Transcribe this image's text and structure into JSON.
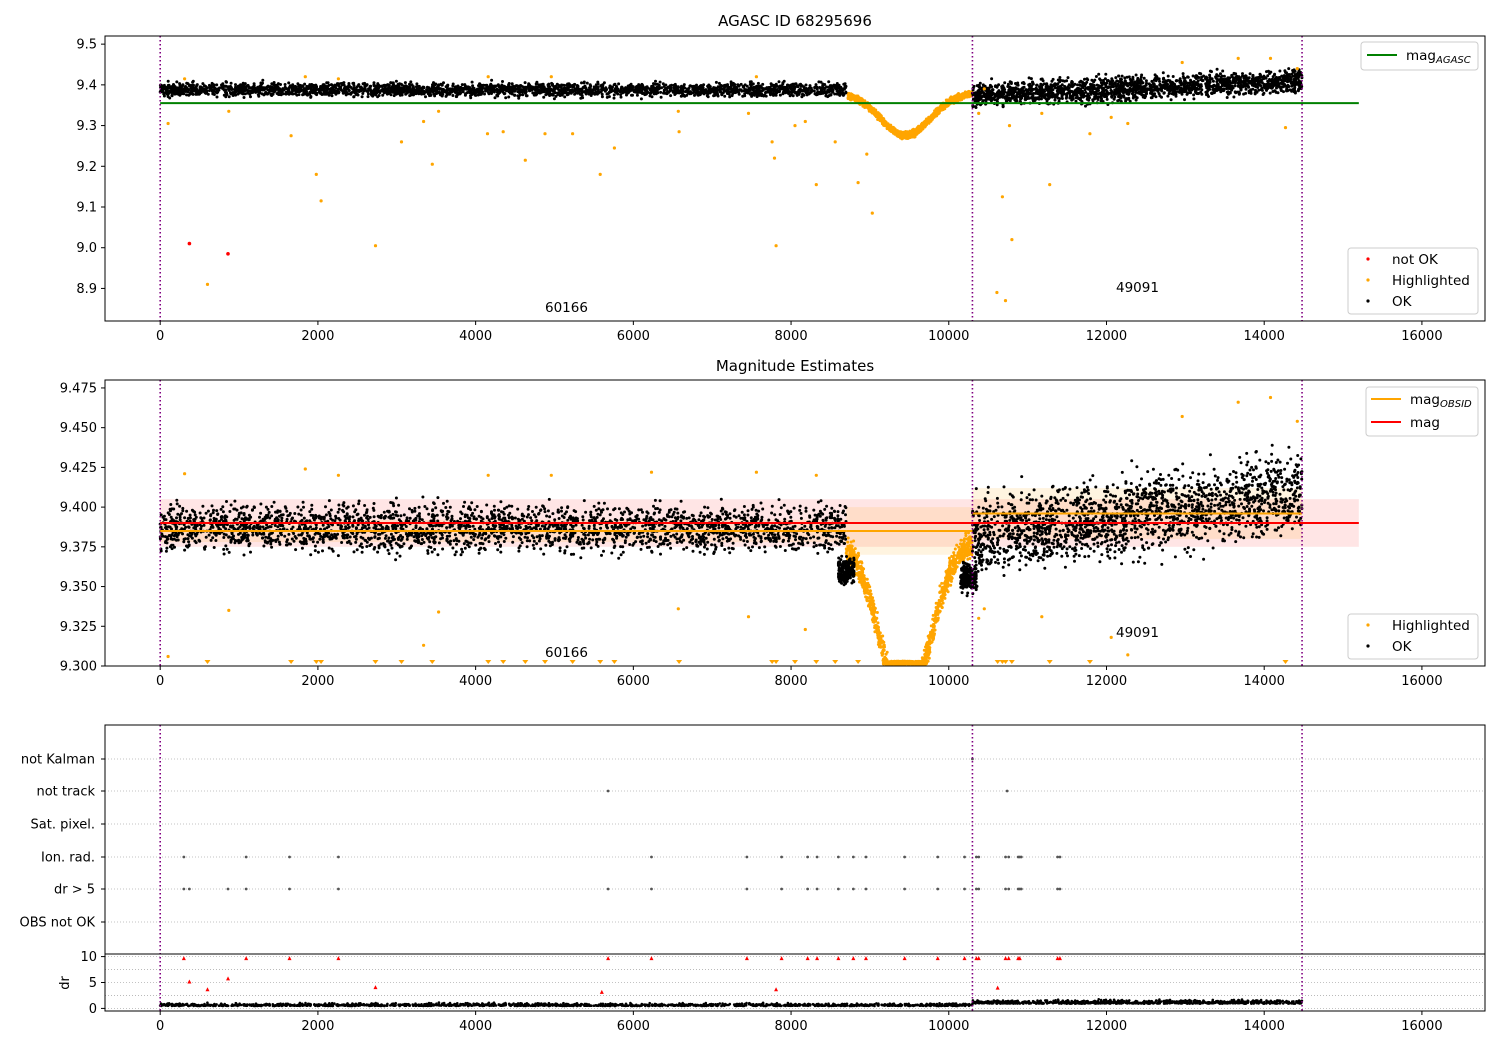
{
  "chart_data": [
    {
      "type": "scatter",
      "panel": "top",
      "title": "AGASC ID 68295696",
      "xlim": [
        -700,
        16800
      ],
      "ylim": [
        8.82,
        9.52
      ],
      "x_ticks": [
        0,
        2000,
        4000,
        6000,
        8000,
        10000,
        12000,
        14000,
        16000
      ],
      "x_tick_labels": [
        "0",
        "2000",
        "4000",
        "6000",
        "8000",
        "10000",
        "12000",
        "14000",
        "16000"
      ],
      "y_ticks": [
        8.9,
        9.0,
        9.1,
        9.2,
        9.3,
        9.4,
        9.5
      ],
      "y_tick_labels": [
        "8.9",
        "9.0",
        "9.1",
        "9.2",
        "9.3",
        "9.4",
        "9.5"
      ],
      "obsid_boundaries": [
        0,
        10300,
        14480
      ],
      "obsid_labels": [
        {
          "text": "60166",
          "x": 4880,
          "y": 8.84
        },
        {
          "text": "49091",
          "x": 12100,
          "y": 8.89
        }
      ],
      "mag_agasc": {
        "value": 9.355,
        "x_range": [
          0,
          15200
        ],
        "color": "#008000"
      },
      "legend_upper": {
        "location": "upper right",
        "entries": [
          {
            "label": "mag",
            "subscript": "AGASC",
            "style": "line",
            "color": "#008000"
          }
        ]
      },
      "legend_lower": {
        "location": "lower right",
        "entries": [
          {
            "label": "not OK",
            "style": "point",
            "color": "#ff0000"
          },
          {
            "label": "Highlighted",
            "style": "point",
            "color": "#ffa500"
          },
          {
            "label": "OK",
            "style": "point",
            "color": "#000000"
          }
        ]
      },
      "not_ok_points": [
        {
          "x": 370,
          "y": 9.01
        },
        {
          "x": 860,
          "y": 8.985
        }
      ],
      "highlighted_outliers": [
        {
          "x": 100,
          "y": 9.305
        },
        {
          "x": 310,
          "y": 9.415
        },
        {
          "x": 600,
          "y": 8.91
        },
        {
          "x": 870,
          "y": 9.335
        },
        {
          "x": 1660,
          "y": 9.275
        },
        {
          "x": 1840,
          "y": 9.42
        },
        {
          "x": 1980,
          "y": 9.18
        },
        {
          "x": 2040,
          "y": 9.115
        },
        {
          "x": 2260,
          "y": 9.415
        },
        {
          "x": 2730,
          "y": 9.005
        },
        {
          "x": 3060,
          "y": 9.26
        },
        {
          "x": 3340,
          "y": 9.31
        },
        {
          "x": 3450,
          "y": 9.205
        },
        {
          "x": 3530,
          "y": 9.335
        },
        {
          "x": 4150,
          "y": 9.28
        },
        {
          "x": 4160,
          "y": 9.42
        },
        {
          "x": 4350,
          "y": 9.285
        },
        {
          "x": 4630,
          "y": 9.215
        },
        {
          "x": 4880,
          "y": 9.28
        },
        {
          "x": 4960,
          "y": 9.42
        },
        {
          "x": 5230,
          "y": 9.28
        },
        {
          "x": 5580,
          "y": 9.18
        },
        {
          "x": 5760,
          "y": 9.245
        },
        {
          "x": 6580,
          "y": 9.285
        },
        {
          "x": 6570,
          "y": 9.335
        },
        {
          "x": 7460,
          "y": 9.33
        },
        {
          "x": 7560,
          "y": 9.42
        },
        {
          "x": 7760,
          "y": 9.26
        },
        {
          "x": 7790,
          "y": 9.22
        },
        {
          "x": 7810,
          "y": 9.005
        },
        {
          "x": 8050,
          "y": 9.3
        },
        {
          "x": 8180,
          "y": 9.31
        },
        {
          "x": 8320,
          "y": 9.155
        },
        {
          "x": 8560,
          "y": 9.26
        },
        {
          "x": 8850,
          "y": 9.16
        },
        {
          "x": 8960,
          "y": 9.23
        },
        {
          "x": 9030,
          "y": 9.085
        },
        {
          "x": 10380,
          "y": 9.33
        },
        {
          "x": 10450,
          "y": 9.39
        },
        {
          "x": 10610,
          "y": 8.89
        },
        {
          "x": 10680,
          "y": 9.125
        },
        {
          "x": 10720,
          "y": 8.87
        },
        {
          "x": 10800,
          "y": 9.02
        },
        {
          "x": 10770,
          "y": 9.3
        },
        {
          "x": 11180,
          "y": 9.33
        },
        {
          "x": 11280,
          "y": 9.155
        },
        {
          "x": 11790,
          "y": 9.28
        },
        {
          "x": 12060,
          "y": 9.32
        },
        {
          "x": 12270,
          "y": 9.305
        },
        {
          "x": 12960,
          "y": 9.455
        },
        {
          "x": 13670,
          "y": 9.465
        },
        {
          "x": 14080,
          "y": 9.465
        },
        {
          "x": 14270,
          "y": 9.295
        },
        {
          "x": 14420,
          "y": 9.44
        }
      ],
      "dip_highlighted": {
        "x_range": [
          8720,
          10300
        ],
        "center": 9450,
        "baseline": 9.38,
        "depth": 0.105
      },
      "ok_band_segments": [
        {
          "x_range": [
            0,
            8700
          ],
          "level": 9.388,
          "spread": 0.02
        },
        {
          "x_range": [
            10300,
            14480
          ],
          "level_start": 9.375,
          "level_end": 9.41,
          "spread": 0.035
        }
      ]
    },
    {
      "type": "scatter",
      "panel": "middle",
      "title": "Magnitude Estimates",
      "xlim": [
        -700,
        16800
      ],
      "ylim": [
        9.3,
        9.48
      ],
      "x_ticks": [
        0,
        2000,
        4000,
        6000,
        8000,
        10000,
        12000,
        14000,
        16000
      ],
      "x_tick_labels": [
        "0",
        "2000",
        "4000",
        "6000",
        "8000",
        "10000",
        "12000",
        "14000",
        "16000"
      ],
      "y_ticks": [
        9.3,
        9.325,
        9.35,
        9.375,
        9.4,
        9.425,
        9.45,
        9.475
      ],
      "y_tick_labels": [
        "9.300",
        "9.325",
        "9.350",
        "9.375",
        "9.400",
        "9.425",
        "9.450",
        "9.475"
      ],
      "obsid_boundaries": [
        0,
        10300,
        14480
      ],
      "obsid_labels": [
        {
          "text": "60166",
          "x": 4880,
          "y": 9.305
        },
        {
          "text": "49091",
          "x": 12100,
          "y": 9.32
        }
      ],
      "mag": {
        "value": 9.39,
        "band": [
          9.375,
          9.405
        ],
        "x_range": [
          0,
          15200
        ],
        "color": "#ff0000"
      },
      "mag_obsid": [
        {
          "x_range": [
            0,
            8700
          ],
          "value": 9.385,
          "band": [
            9.378,
            9.392
          ]
        },
        {
          "x_range": [
            8700,
            10300
          ],
          "value": 9.385,
          "band": [
            9.37,
            9.4
          ]
        },
        {
          "x_range": [
            10300,
            14480
          ],
          "value": 9.396,
          "band": [
            9.38,
            9.412
          ]
        }
      ],
      "mag_obsid_color": "#ffa500",
      "legend_upper": {
        "location": "upper right",
        "entries": [
          {
            "label": "mag",
            "subscript": "OBSID",
            "style": "line",
            "color": "#ffa500"
          },
          {
            "label": "mag",
            "style": "line",
            "color": "#ff0000"
          }
        ]
      },
      "legend_lower": {
        "location": "lower right",
        "entries": [
          {
            "label": "Highlighted",
            "style": "point",
            "color": "#ffa500"
          },
          {
            "label": "OK",
            "style": "point",
            "color": "#000000"
          }
        ]
      },
      "below_range_markers_x": [
        600,
        1660,
        1980,
        2040,
        2730,
        3060,
        3450,
        4160,
        4350,
        4630,
        4880,
        5230,
        5580,
        5760,
        6580,
        7760,
        7810,
        8050,
        8320,
        8560,
        8850,
        10620,
        10680,
        10720,
        10800,
        11280,
        11790,
        14270
      ],
      "highlighted_outliers": [
        {
          "x": 100,
          "y": 9.306
        },
        {
          "x": 310,
          "y": 9.421
        },
        {
          "x": 870,
          "y": 9.335
        },
        {
          "x": 1840,
          "y": 9.424
        },
        {
          "x": 2260,
          "y": 9.42
        },
        {
          "x": 3340,
          "y": 9.313
        },
        {
          "x": 3530,
          "y": 9.334
        },
        {
          "x": 4160,
          "y": 9.42
        },
        {
          "x": 4960,
          "y": 9.42
        },
        {
          "x": 6230,
          "y": 9.422
        },
        {
          "x": 6570,
          "y": 9.336
        },
        {
          "x": 7460,
          "y": 9.331
        },
        {
          "x": 7560,
          "y": 9.422
        },
        {
          "x": 8180,
          "y": 9.323
        },
        {
          "x": 8320,
          "y": 9.42
        },
        {
          "x": 10380,
          "y": 9.33
        },
        {
          "x": 10450,
          "y": 9.336
        },
        {
          "x": 11180,
          "y": 9.331
        },
        {
          "x": 12060,
          "y": 9.318
        },
        {
          "x": 12270,
          "y": 9.307
        },
        {
          "x": 12960,
          "y": 9.457
        },
        {
          "x": 13670,
          "y": 9.466
        },
        {
          "x": 14080,
          "y": 9.469
        },
        {
          "x": 14420,
          "y": 9.454
        }
      ],
      "ok_band_segments": [
        {
          "x_range": [
            0,
            8700
          ],
          "level": 9.387,
          "spread": 0.018
        },
        {
          "x_range": [
            10300,
            14480
          ],
          "level_start": 9.38,
          "level_end": 9.41,
          "spread": 0.03
        }
      ]
    },
    {
      "type": "scatter",
      "panel": "flags",
      "xlim": [
        -700,
        16800
      ],
      "categories": [
        "not Kalman",
        "not track",
        "Sat. pixel.",
        "Ion. rad.",
        "dr > 5",
        "OBS not OK"
      ],
      "obsid_boundaries": [
        0,
        10300,
        14480
      ],
      "flag_points": {
        "not Kalman": [
          10300
        ],
        "not track": [
          5680,
          10740
        ],
        "Sat. pixel.": [],
        "Ion. rad.": [
          300,
          1090,
          1640,
          2260,
          6230,
          7440,
          7880,
          8210,
          8330,
          8600,
          8790,
          8950,
          9440,
          9860,
          10200,
          10350,
          10380,
          10720,
          10760,
          10880,
          10900,
          10920,
          11380,
          11410
        ],
        "dr > 5": [
          300,
          370,
          860,
          1090,
          1640,
          2260,
          5680,
          6230,
          7440,
          7880,
          8210,
          8330,
          8600,
          8790,
          8950,
          9440,
          9860,
          10200,
          10350,
          10380,
          10720,
          10760,
          10880,
          10900,
          10920,
          11380,
          11410
        ],
        "OBS not OK": []
      }
    },
    {
      "type": "scatter",
      "panel": "dr",
      "ylabel": "dr",
      "xlim": [
        -700,
        16800
      ],
      "ylim": [
        -0.5,
        10.5
      ],
      "x_ticks": [
        0,
        2000,
        4000,
        6000,
        8000,
        10000,
        12000,
        14000,
        16000
      ],
      "x_tick_labels": [
        "0",
        "2000",
        "4000",
        "6000",
        "8000",
        "10000",
        "12000",
        "14000",
        "16000"
      ],
      "y_ticks": [
        0,
        5,
        10
      ],
      "y_tick_labels": [
        "0",
        "5",
        "10"
      ],
      "threshold": 5,
      "obsid_boundaries": [
        0,
        10300,
        14480
      ],
      "red_points": [
        {
          "x": 300,
          "y": 9.7
        },
        {
          "x": 370,
          "y": 5.2
        },
        {
          "x": 600,
          "y": 3.7
        },
        {
          "x": 860,
          "y": 5.8
        },
        {
          "x": 1090,
          "y": 9.7
        },
        {
          "x": 1640,
          "y": 9.7
        },
        {
          "x": 2260,
          "y": 9.7
        },
        {
          "x": 2730,
          "y": 4.1
        },
        {
          "x": 5600,
          "y": 3.2
        },
        {
          "x": 5680,
          "y": 9.7
        },
        {
          "x": 6230,
          "y": 9.7
        },
        {
          "x": 7440,
          "y": 9.7
        },
        {
          "x": 7810,
          "y": 3.7
        },
        {
          "x": 7880,
          "y": 9.7
        },
        {
          "x": 8210,
          "y": 9.7
        },
        {
          "x": 8330,
          "y": 9.7
        },
        {
          "x": 8600,
          "y": 9.7
        },
        {
          "x": 8790,
          "y": 9.7
        },
        {
          "x": 8950,
          "y": 9.7
        },
        {
          "x": 9440,
          "y": 9.7
        },
        {
          "x": 9860,
          "y": 9.7
        },
        {
          "x": 10200,
          "y": 9.7
        },
        {
          "x": 10350,
          "y": 9.7
        },
        {
          "x": 10380,
          "y": 9.7
        },
        {
          "x": 10620,
          "y": 4.0
        },
        {
          "x": 10720,
          "y": 9.7
        },
        {
          "x": 10760,
          "y": 9.7
        },
        {
          "x": 10880,
          "y": 9.7
        },
        {
          "x": 10900,
          "y": 9.7
        },
        {
          "x": 11380,
          "y": 9.7
        },
        {
          "x": 11410,
          "y": 9.7
        }
      ],
      "ok_band_segments": [
        {
          "x_range": [
            0,
            10300
          ],
          "level": 0.6,
          "spread": 0.45
        },
        {
          "x_range": [
            10300,
            14480
          ],
          "level": 1.1,
          "spread": 0.6
        }
      ]
    }
  ]
}
